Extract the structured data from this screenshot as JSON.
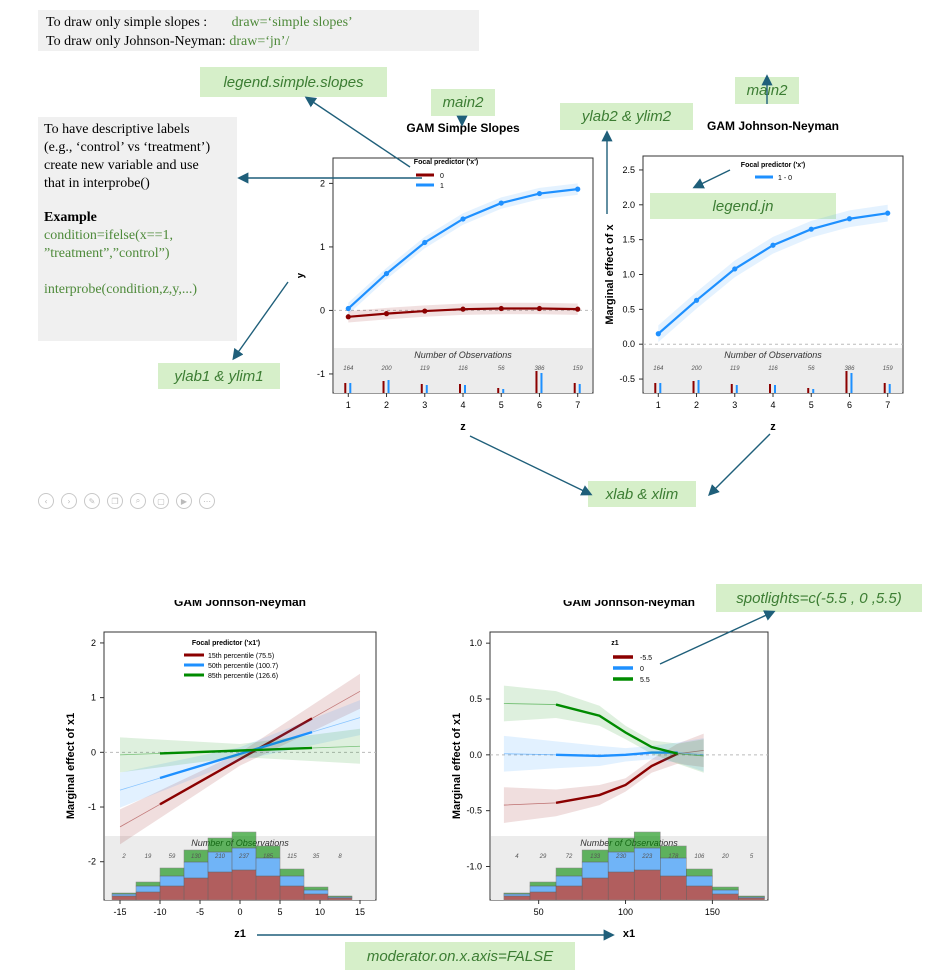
{
  "top_box": {
    "line1_label": "To draw only simple slopes :",
    "line1_code": "draw=‘simple slopes’",
    "line2_label": "To draw only Johnson-Neyman:",
    "line2_code": "draw=‘jn’/"
  },
  "side_box": {
    "line1": "To have descriptive labels",
    "line2": "(e.g., ‘control’ vs ‘treatment’)",
    "line3": "create new variable and use",
    "line4": "that in interprobe()",
    "example_title": "Example",
    "code1": "condition=ifelse(x==1,",
    "code2": "”treatment”,”control”)",
    "code3": "interprobe(condition,z,y,...)"
  },
  "tags": {
    "legend_simple_slopes": "legend.simple.slopes",
    "main2_left": "main2",
    "ylab2_ylim2": "ylab2 & ylim2",
    "main2_right": "main2",
    "legend_jn": "legend.jn",
    "ylab1_ylim1": "ylab1 & ylim1",
    "xlab_xlim": "xlab & xlim",
    "spotlights": "spotlights=c(-5.5 , 0 ,5.5)",
    "moderator_on_x": "moderator.on.x.axis=FALSE"
  },
  "toolbar_icons": [
    "prev-icon",
    "next-icon",
    "draw-icon",
    "copy-icon",
    "zoom-icon",
    "fit-icon",
    "camera-icon",
    "more-icon"
  ],
  "colors": {
    "dark_red": "#8b0000",
    "blue": "#1e90ff",
    "green": "#008b00",
    "tag_bg": "#d6efc9",
    "tag_text": "#3c7d33",
    "arrow": "#1f5f7a"
  },
  "chart_data": [
    {
      "type": "line",
      "title": "GAM Simple Slopes",
      "xlabel": "z",
      "ylabel": "y",
      "x": [
        1,
        2,
        3,
        4,
        5,
        6,
        7
      ],
      "legend_title": "Focal predictor ('x')",
      "series": [
        {
          "name": "0",
          "values": [
            -0.1,
            -0.05,
            -0.01,
            0.02,
            0.03,
            0.03,
            0.02
          ]
        },
        {
          "name": "1",
          "values": [
            0.03,
            0.58,
            1.07,
            1.44,
            1.69,
            1.84,
            1.91
          ]
        }
      ],
      "yticks": [
        -1,
        0,
        1,
        2
      ],
      "xticks": [
        1,
        2,
        3,
        4,
        5,
        6,
        7
      ],
      "obs_title": "Number of Observations",
      "obs_counts": [
        "164",
        "200",
        "119",
        "116",
        "56",
        "386",
        "159"
      ]
    },
    {
      "type": "line",
      "title": "GAM Johnson-Neyman",
      "xlabel": "z",
      "ylabel": "Marginal effect of x",
      "x": [
        1,
        2,
        3,
        4,
        5,
        6,
        7
      ],
      "legend_title": "Focal predictor ('x')",
      "series": [
        {
          "name": "1 - 0",
          "values": [
            0.15,
            0.63,
            1.08,
            1.42,
            1.65,
            1.8,
            1.88
          ]
        }
      ],
      "yticks": [
        "-0.5",
        "0.0",
        "0.5",
        "1.0",
        "1.5",
        "2.0",
        "2.5"
      ],
      "xticks": [
        1,
        2,
        3,
        4,
        5,
        6,
        7
      ],
      "obs_title": "Number of Observations",
      "obs_counts": [
        "164",
        "200",
        "119",
        "116",
        "56",
        "386",
        "159"
      ]
    },
    {
      "type": "line",
      "title": "GAM Johnson-Neyman",
      "xlabel": "z1",
      "ylabel": "Marginal effect of x1",
      "legend_title": "Focal predictor ('x1')",
      "series": [
        {
          "name": "15th percentile (75.5)",
          "x": [
            -10,
            9
          ],
          "values": [
            -0.95,
            0.62
          ]
        },
        {
          "name": "50th percentile (100.7)",
          "x": [
            -10,
            9
          ],
          "values": [
            -0.47,
            0.37
          ]
        },
        {
          "name": "85th percentile (126.6)",
          "x": [
            -10,
            9
          ],
          "values": [
            -0.02,
            0.08
          ]
        }
      ],
      "yticks": [
        -2,
        -1,
        0,
        1,
        2
      ],
      "xticks": [
        "-15",
        "-10",
        "-5",
        "0",
        "5",
        "10",
        "15"
      ],
      "obs_title": "Number of Observations",
      "obs_counts": [
        "2",
        "19",
        "59",
        "130",
        "210",
        "237",
        "185",
        "115",
        "35",
        "8"
      ]
    },
    {
      "type": "line",
      "title": "GAM Johnson-Neyman",
      "xlabel": "x1",
      "ylabel": "Marginal effect of x1",
      "legend_title": "z1",
      "series": [
        {
          "name": "-5.5",
          "x": [
            30,
            60,
            85,
            100,
            115,
            130,
            145
          ],
          "values": [
            -0.45,
            -0.43,
            -0.36,
            -0.27,
            -0.1,
            0.01,
            0.04
          ]
        },
        {
          "name": "0",
          "x": [
            30,
            60,
            85,
            100,
            115,
            130,
            145
          ],
          "values": [
            0.01,
            0.0,
            -0.01,
            0.0,
            0.02,
            0.02,
            0.0
          ]
        },
        {
          "name": "5.5",
          "x": [
            30,
            60,
            85,
            100,
            115,
            130,
            145
          ],
          "values": [
            0.46,
            0.45,
            0.35,
            0.2,
            0.07,
            0.01,
            -0.01
          ]
        }
      ],
      "yticks": [
        "-1.0",
        "-0.5",
        "0.0",
        "0.5",
        "1.0"
      ],
      "xticks": [
        "50",
        "100",
        "150"
      ],
      "obs_title": "Number of Observations",
      "obs_counts": [
        "4",
        "29",
        "72",
        "133",
        "230",
        "223",
        "178",
        "106",
        "20",
        "5"
      ]
    }
  ]
}
